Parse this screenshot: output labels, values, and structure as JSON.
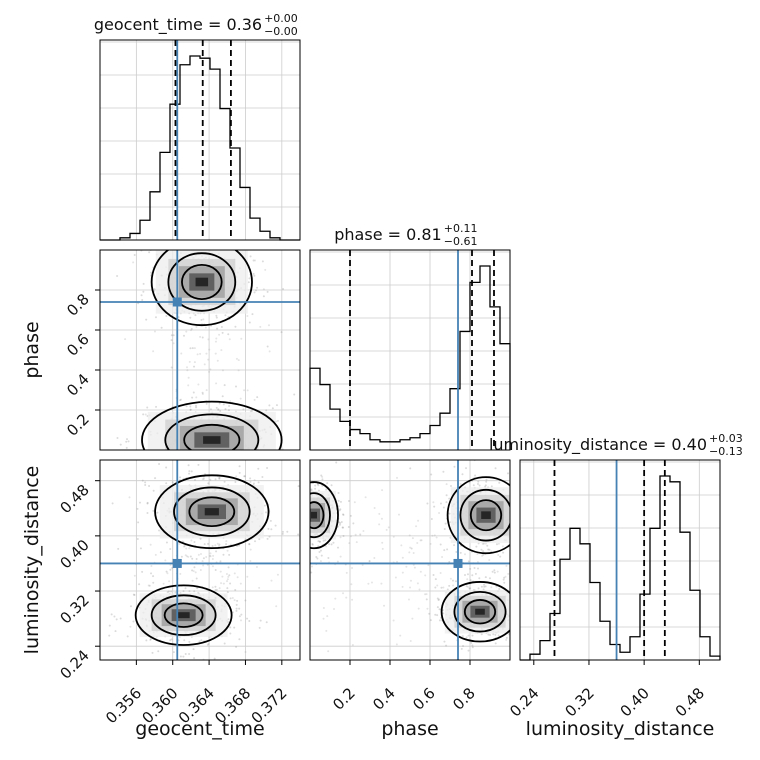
{
  "chart_data": {
    "type": "corner",
    "parameters": [
      "geocent_time",
      "phase",
      "luminosity_distance"
    ],
    "truths": [
      0.3605,
      0.74,
      0.36
    ],
    "truth_color": "#4682b4",
    "ranges": [
      [
        0.352,
        0.374
      ],
      [
        0.0,
        1.0
      ],
      [
        0.22,
        0.51
      ]
    ],
    "ticks": [
      [
        "0.356",
        "0.360",
        "0.364",
        "0.368",
        "0.372"
      ],
      [
        "0.2",
        "0.4",
        "0.6",
        "0.8"
      ],
      [
        "0.24",
        "0.32",
        "0.40",
        "0.48"
      ]
    ],
    "titles": [
      {
        "name": "geocent_time",
        "value": "0.36",
        "plus": "+0.00",
        "minus": "−0.00"
      },
      {
        "name": "phase",
        "value": "0.81",
        "plus": "+0.11",
        "minus": "−0.61"
      },
      {
        "name": "luminosity_distance",
        "value": "0.40",
        "plus": "+0.03",
        "minus": "−0.13"
      }
    ],
    "quantiles": [
      [
        0.3603,
        0.3633,
        0.3664
      ],
      [
        0.2,
        0.81,
        0.92
      ],
      [
        0.27,
        0.4,
        0.43
      ]
    ],
    "histograms": [
      {
        "edges_start": 0.352,
        "bin_width": 0.0011,
        "counts": [
          0,
          0,
          1,
          3,
          9,
          22,
          40,
          62,
          80,
          84,
          83,
          78,
          60,
          42,
          24,
          10,
          4,
          1,
          0,
          0
        ]
      },
      {
        "edges_start": 0.0,
        "bin_width": 0.05,
        "counts": [
          40,
          32,
          20,
          14,
          10,
          8,
          5,
          4,
          4,
          5,
          6,
          8,
          12,
          18,
          30,
          58,
          82,
          90,
          70,
          52
        ]
      },
      {
        "edges_start": 0.22,
        "bin_width": 0.0145,
        "counts": [
          0,
          3,
          10,
          24,
          52,
          68,
          60,
          40,
          20,
          8,
          4,
          12,
          34,
          68,
          95,
          92,
          66,
          36,
          12,
          2
        ]
      }
    ],
    "modes": {
      "geocent_phase": [
        {
          "center": [
            0.3632,
            0.84
          ],
          "spread": [
            0.0023,
            0.09
          ]
        },
        {
          "center": [
            0.3643,
            0.05
          ],
          "spread": [
            0.0032,
            0.08
          ]
        }
      ],
      "geocent_distance": [
        {
          "center": [
            0.3643,
            0.435
          ],
          "spread": [
            0.0026,
            0.022
          ]
        },
        {
          "center": [
            0.3612,
            0.285
          ],
          "spread": [
            0.0022,
            0.018
          ]
        }
      ],
      "phase_distance": [
        {
          "center": [
            0.88,
            0.43
          ],
          "spread": [
            0.08,
            0.023
          ]
        },
        {
          "center": [
            0.02,
            0.43
          ],
          "spread": [
            0.05,
            0.02
          ]
        },
        {
          "center": [
            0.85,
            0.29
          ],
          "spread": [
            0.08,
            0.018
          ]
        }
      ]
    }
  }
}
